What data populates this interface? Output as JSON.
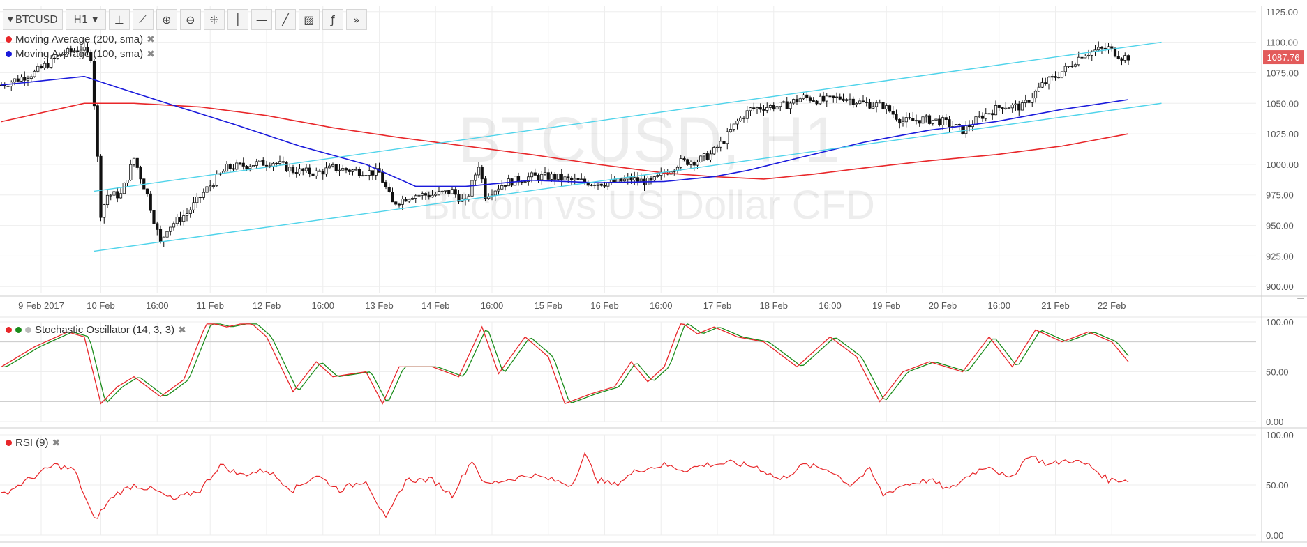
{
  "toolbar": {
    "symbol": "BTCUSD",
    "interval": "H1",
    "tools": [
      {
        "name": "bar-style-icon",
        "glyph": "⊥"
      },
      {
        "name": "indicator-icon",
        "glyph": "⟋"
      },
      {
        "name": "zoom-in-icon",
        "glyph": "⊕"
      },
      {
        "name": "zoom-out-icon",
        "glyph": "⊖"
      },
      {
        "name": "crosshair-icon",
        "glyph": "⁜"
      },
      {
        "name": "vertical-line-icon",
        "glyph": "│"
      },
      {
        "name": "horizontal-line-icon",
        "glyph": "—"
      },
      {
        "name": "trend-line-icon",
        "glyph": "╱"
      },
      {
        "name": "fib-icon",
        "glyph": "▨"
      },
      {
        "name": "function-icon",
        "glyph": "ƒ"
      },
      {
        "name": "more-icon",
        "glyph": "»"
      }
    ]
  },
  "watermark": {
    "line1": "BTCUSD, H1",
    "line2": "Bitcoin vs US Dollar CFD"
  },
  "legends": {
    "ma200": "Moving Average (200, sma)",
    "ma100": "Moving Average (100, sma)",
    "stoch": "Stochastic Oscillator (14, 3, 3)",
    "rsi": "RSI (9)"
  },
  "colors": {
    "candle": "#111111",
    "ma200": "#e8272a",
    "ma100": "#1a1adb",
    "channel": "#4fd3ea",
    "stoch_k": "#e8272a",
    "stoch_d": "#1a8c1a",
    "rsi": "#e8272a",
    "price_tag": "#e35b5b",
    "grid": "#eeeeee"
  },
  "chart_data": [
    {
      "type": "candlestick",
      "title": "BTCUSD, H1",
      "ylim": [
        895,
        1130
      ],
      "y_ticks": [
        900,
        925,
        950,
        975,
        1000,
        1025,
        1050,
        1075,
        1100,
        1125
      ],
      "y_tick_labels": [
        "900.00",
        "925.00",
        "950.00",
        "975.00",
        "1000.00",
        "1025.00",
        "1050.00",
        "1075.00",
        "1100.00",
        "1125.00"
      ],
      "last_price": 1087.76,
      "last_price_label": "1087.76",
      "x_labels": [
        "9 Feb 2017",
        "10 Feb",
        "16:00",
        "11 Feb",
        "12 Feb",
        "16:00",
        "13 Feb",
        "14 Feb",
        "16:00",
        "15 Feb",
        "16 Feb",
        "16:00",
        "17 Feb",
        "18 Feb",
        "16:00",
        "19 Feb",
        "20 Feb",
        "16:00",
        "21 Feb",
        "22 Feb"
      ],
      "x_label_index": [
        12,
        30,
        47,
        63,
        80,
        97,
        114,
        131,
        148,
        165,
        182,
        199,
        216,
        233,
        250,
        267,
        284,
        301,
        318,
        335
      ],
      "price_path": [
        [
          0,
          1065
        ],
        [
          10,
          1075
        ],
        [
          18,
          1090
        ],
        [
          24,
          1095
        ],
        [
          27,
          1088
        ],
        [
          28,
          1050
        ],
        [
          30,
          960
        ],
        [
          32,
          975
        ],
        [
          36,
          975
        ],
        [
          40,
          1005
        ],
        [
          44,
          975
        ],
        [
          48,
          935
        ],
        [
          50,
          948
        ],
        [
          56,
          960
        ],
        [
          62,
          980
        ],
        [
          68,
          997
        ],
        [
          75,
          1000
        ],
        [
          82,
          1002
        ],
        [
          88,
          995
        ],
        [
          95,
          993
        ],
        [
          100,
          997
        ],
        [
          106,
          995
        ],
        [
          114,
          993
        ],
        [
          118,
          968
        ],
        [
          124,
          975
        ],
        [
          130,
          975
        ],
        [
          136,
          978
        ],
        [
          140,
          968
        ],
        [
          144,
          1000
        ],
        [
          146,
          975
        ],
        [
          152,
          985
        ],
        [
          160,
          990
        ],
        [
          166,
          990
        ],
        [
          172,
          987
        ],
        [
          178,
          985
        ],
        [
          184,
          985
        ],
        [
          190,
          988
        ],
        [
          196,
          985
        ],
        [
          200,
          993
        ],
        [
          205,
          1002
        ],
        [
          210,
          1003
        ],
        [
          214,
          1008
        ],
        [
          218,
          1020
        ],
        [
          222,
          1035
        ],
        [
          226,
          1045
        ],
        [
          230,
          1047
        ],
        [
          236,
          1048
        ],
        [
          242,
          1055
        ],
        [
          248,
          1052
        ],
        [
          254,
          1055
        ],
        [
          260,
          1050
        ],
        [
          266,
          1048
        ],
        [
          272,
          1035
        ],
        [
          278,
          1037
        ],
        [
          284,
          1035
        ],
        [
          290,
          1028
        ],
        [
          296,
          1040
        ],
        [
          302,
          1048
        ],
        [
          308,
          1047
        ],
        [
          314,
          1065
        ],
        [
          318,
          1072
        ],
        [
          322,
          1080
        ],
        [
          326,
          1090
        ],
        [
          330,
          1093
        ],
        [
          334,
          1095
        ],
        [
          338,
          1088
        ]
      ],
      "ma200_path": [
        [
          0,
          1035
        ],
        [
          25,
          1050
        ],
        [
          40,
          1050
        ],
        [
          60,
          1047
        ],
        [
          80,
          1040
        ],
        [
          100,
          1030
        ],
        [
          120,
          1022
        ],
        [
          140,
          1015
        ],
        [
          160,
          1008
        ],
        [
          180,
          1000
        ],
        [
          200,
          993
        ],
        [
          215,
          990
        ],
        [
          230,
          988
        ],
        [
          245,
          992
        ],
        [
          260,
          997
        ],
        [
          280,
          1003
        ],
        [
          300,
          1008
        ],
        [
          320,
          1015
        ],
        [
          340,
          1025
        ]
      ],
      "ma100_path": [
        [
          0,
          1065
        ],
        [
          25,
          1072
        ],
        [
          35,
          1063
        ],
        [
          50,
          1050
        ],
        [
          70,
          1033
        ],
        [
          90,
          1015
        ],
        [
          110,
          1000
        ],
        [
          125,
          982
        ],
        [
          140,
          982
        ],
        [
          160,
          987
        ],
        [
          180,
          985
        ],
        [
          200,
          986
        ],
        [
          215,
          990
        ],
        [
          225,
          995
        ],
        [
          240,
          1005
        ],
        [
          260,
          1018
        ],
        [
          280,
          1028
        ],
        [
          300,
          1035
        ],
        [
          320,
          1045
        ],
        [
          340,
          1053
        ]
      ],
      "channel_upper": [
        [
          28,
          978
        ],
        [
          350,
          1100
        ]
      ],
      "channel_lower": [
        [
          28,
          929
        ],
        [
          350,
          1050
        ]
      ]
    },
    {
      "type": "line",
      "title": "Stochastic Oscillator (14, 3, 3)",
      "ylim": [
        0,
        100
      ],
      "y_ticks": [
        0,
        50,
        100
      ],
      "y_tick_labels": [
        "0.00",
        "50.00",
        "100.00"
      ],
      "levels": [
        20,
        80
      ],
      "k_path": [
        [
          0,
          55
        ],
        [
          10,
          75
        ],
        [
          20,
          90
        ],
        [
          25,
          85
        ],
        [
          30,
          18
        ],
        [
          35,
          35
        ],
        [
          40,
          45
        ],
        [
          48,
          25
        ],
        [
          55,
          42
        ],
        [
          62,
          100
        ],
        [
          68,
          95
        ],
        [
          75,
          100
        ],
        [
          80,
          85
        ],
        [
          88,
          30
        ],
        [
          95,
          60
        ],
        [
          100,
          45
        ],
        [
          110,
          50
        ],
        [
          115,
          18
        ],
        [
          120,
          55
        ],
        [
          125,
          55
        ],
        [
          130,
          55
        ],
        [
          138,
          45
        ],
        [
          145,
          95
        ],
        [
          150,
          48
        ],
        [
          158,
          85
        ],
        [
          165,
          65
        ],
        [
          170,
          18
        ],
        [
          178,
          28
        ],
        [
          185,
          35
        ],
        [
          190,
          60
        ],
        [
          195,
          40
        ],
        [
          200,
          55
        ],
        [
          205,
          100
        ],
        [
          210,
          88
        ],
        [
          215,
          95
        ],
        [
          222,
          85
        ],
        [
          230,
          80
        ],
        [
          240,
          55
        ],
        [
          250,
          85
        ],
        [
          258,
          65
        ],
        [
          265,
          20
        ],
        [
          272,
          50
        ],
        [
          280,
          60
        ],
        [
          290,
          50
        ],
        [
          298,
          85
        ],
        [
          305,
          55
        ],
        [
          312,
          92
        ],
        [
          320,
          80
        ],
        [
          328,
          90
        ],
        [
          335,
          80
        ],
        [
          340,
          60
        ]
      ],
      "d_shift": 1.5
    },
    {
      "type": "line",
      "title": "RSI (9)",
      "ylim": [
        0,
        100
      ],
      "y_ticks": [
        0,
        50,
        100
      ],
      "y_tick_labels": [
        "0.00",
        "50.00",
        "100.00"
      ],
      "path": [
        [
          0,
          40
        ],
        [
          8,
          55
        ],
        [
          16,
          70
        ],
        [
          22,
          65
        ],
        [
          28,
          15
        ],
        [
          34,
          40
        ],
        [
          40,
          50
        ],
        [
          46,
          45
        ],
        [
          52,
          35
        ],
        [
          60,
          45
        ],
        [
          66,
          70
        ],
        [
          72,
          60
        ],
        [
          80,
          65
        ],
        [
          88,
          45
        ],
        [
          95,
          60
        ],
        [
          102,
          45
        ],
        [
          110,
          55
        ],
        [
          116,
          15
        ],
        [
          122,
          55
        ],
        [
          130,
          55
        ],
        [
          136,
          40
        ],
        [
          142,
          75
        ],
        [
          146,
          50
        ],
        [
          152,
          55
        ],
        [
          160,
          60
        ],
        [
          166,
          55
        ],
        [
          172,
          50
        ],
        [
          176,
          80
        ],
        [
          180,
          55
        ],
        [
          185,
          50
        ],
        [
          192,
          65
        ],
        [
          200,
          70
        ],
        [
          206,
          65
        ],
        [
          212,
          70
        ],
        [
          220,
          72
        ],
        [
          228,
          68
        ],
        [
          235,
          55
        ],
        [
          242,
          70
        ],
        [
          250,
          65
        ],
        [
          256,
          50
        ],
        [
          262,
          65
        ],
        [
          266,
          40
        ],
        [
          272,
          50
        ],
        [
          280,
          55
        ],
        [
          286,
          45
        ],
        [
          292,
          60
        ],
        [
          298,
          70
        ],
        [
          304,
          55
        ],
        [
          310,
          80
        ],
        [
          316,
          70
        ],
        [
          322,
          75
        ],
        [
          328,
          70
        ],
        [
          334,
          55
        ],
        [
          340,
          55
        ]
      ]
    }
  ]
}
